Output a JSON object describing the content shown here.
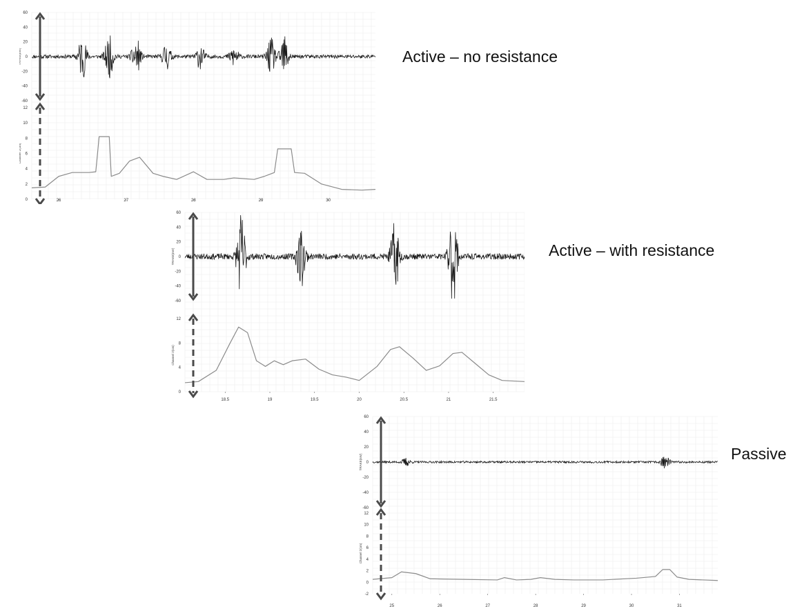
{
  "colors": {
    "emg_trace": "#1a1a1a",
    "displacement_trace": "#8a8a8a",
    "grid": "#ececec",
    "arrow": "#4a4a4a"
  },
  "panels": [
    {
      "caption": "Active – no resistance",
      "emg_ylabel": "TRAKE(mV)",
      "disp_ylabel": "Channel 2(cm)",
      "emg_yticks": [
        "60",
        "40",
        "20",
        "0",
        "-20",
        "-40",
        "-60"
      ],
      "disp_yticks": [
        "12",
        "10",
        "8",
        "6",
        "4",
        "2",
        "0"
      ],
      "xticks": [
        "26",
        "27",
        "28",
        "29",
        "30"
      ]
    },
    {
      "caption": "Active – with resistance",
      "emg_ylabel": "TRAKE(mV)",
      "disp_ylabel": "Channel 2(cm)",
      "emg_yticks": [
        "60",
        "40",
        "20",
        "0",
        "-20",
        "-40",
        "-60"
      ],
      "disp_yticks": [
        "12",
        "8",
        "4",
        "0"
      ],
      "xticks": [
        "18.5",
        "19",
        "19.5",
        "20",
        "20.5",
        "21",
        "21.5"
      ]
    },
    {
      "caption": "Passive",
      "emg_ylabel": "TRAKE(mV)",
      "disp_ylabel": "Channel 2(cm)",
      "emg_yticks": [
        "60",
        "40",
        "20",
        "0",
        "-20",
        "-40",
        "-60"
      ],
      "disp_yticks": [
        "12",
        "10",
        "8",
        "6",
        "4",
        "2",
        "0",
        "-2"
      ],
      "xticks": [
        "25",
        "26",
        "27",
        "28",
        "29",
        "30",
        "31"
      ]
    }
  ],
  "chart_data": [
    {
      "type": "line",
      "caption": "Active – no resistance",
      "subplots": [
        {
          "ylabel": "TRAKE(mV)",
          "ylim": [
            -60,
            60
          ],
          "xlim": [
            25.6,
            30.7
          ],
          "signal": "EMG (oscillatory)",
          "bursts": [
            {
              "x": 26.35,
              "amp": 30
            },
            {
              "x": 26.75,
              "amp": 28
            },
            {
              "x": 27.15,
              "amp": 25
            },
            {
              "x": 27.6,
              "amp": 18
            },
            {
              "x": 28.1,
              "amp": 16
            },
            {
              "x": 28.6,
              "amp": 14
            },
            {
              "x": 29.15,
              "amp": 24
            },
            {
              "x": 29.35,
              "amp": 28
            }
          ]
        },
        {
          "ylabel": "Channel 2(cm)",
          "ylim": [
            0,
            12
          ],
          "xlim": [
            25.6,
            30.7
          ],
          "x": [
            25.6,
            25.8,
            26.0,
            26.2,
            26.45,
            26.55,
            26.6,
            26.75,
            26.78,
            26.9,
            27.05,
            27.2,
            27.4,
            27.55,
            27.75,
            28.0,
            28.2,
            28.45,
            28.6,
            28.9,
            29.05,
            29.2,
            29.25,
            29.45,
            29.5,
            29.65,
            29.9,
            30.2,
            30.5,
            30.7
          ],
          "y": [
            1.5,
            1.6,
            3.0,
            3.5,
            3.5,
            3.6,
            8.2,
            8.2,
            3.0,
            3.4,
            5.0,
            5.5,
            3.4,
            3.0,
            2.6,
            3.6,
            2.6,
            2.6,
            2.8,
            2.6,
            3.0,
            3.5,
            6.6,
            6.6,
            3.5,
            3.4,
            2.0,
            1.3,
            1.2,
            1.3
          ]
        }
      ]
    },
    {
      "type": "line",
      "caption": "Active – with resistance",
      "subplots": [
        {
          "ylabel": "TRAKE(mV)",
          "ylim": [
            -60,
            60
          ],
          "xlim": [
            18.05,
            21.85
          ],
          "signal": "EMG (oscillatory)",
          "bursts": [
            {
              "x": 18.68,
              "amp": 60
            },
            {
              "x": 19.35,
              "amp": 42
            },
            {
              "x": 20.4,
              "amp": 48
            },
            {
              "x": 21.05,
              "amp": 62
            }
          ]
        },
        {
          "ylabel": "Channel 2(cm)",
          "ylim": [
            0,
            13
          ],
          "xlim": [
            18.05,
            21.85
          ],
          "x": [
            18.05,
            18.2,
            18.4,
            18.55,
            18.65,
            18.75,
            18.85,
            18.95,
            19.05,
            19.15,
            19.25,
            19.4,
            19.55,
            19.7,
            19.85,
            20.0,
            20.2,
            20.35,
            20.45,
            20.6,
            20.75,
            20.9,
            21.05,
            21.15,
            21.3,
            21.45,
            21.6,
            21.85
          ],
          "y": [
            1.6,
            1.8,
            3.8,
            8.5,
            11.5,
            10.5,
            5.5,
            4.5,
            5.5,
            4.8,
            5.5,
            5.8,
            4.0,
            3.0,
            2.6,
            2.0,
            4.5,
            7.5,
            8.0,
            6.0,
            3.8,
            4.6,
            6.8,
            7.0,
            5.0,
            3.0,
            2.0,
            1.8
          ]
        }
      ]
    },
    {
      "type": "line",
      "caption": "Passive",
      "subplots": [
        {
          "ylabel": "TRAKE(mV)",
          "ylim": [
            -60,
            60
          ],
          "xlim": [
            24.6,
            31.8
          ],
          "signal": "EMG (oscillatory)",
          "bursts": [
            {
              "x": 25.3,
              "amp": 5
            },
            {
              "x": 30.7,
              "amp": 9
            }
          ]
        },
        {
          "ylabel": "Channel 2(cm)",
          "ylim": [
            -2,
            12
          ],
          "xlim": [
            24.6,
            31.8
          ],
          "x": [
            24.6,
            25.0,
            25.2,
            25.5,
            25.8,
            26.5,
            27.2,
            27.35,
            27.6,
            27.9,
            28.1,
            28.4,
            28.8,
            29.4,
            30.1,
            30.5,
            30.65,
            30.8,
            30.95,
            31.2,
            31.8
          ],
          "y": [
            0.5,
            0.8,
            1.8,
            1.5,
            0.6,
            0.5,
            0.4,
            0.8,
            0.4,
            0.5,
            0.8,
            0.5,
            0.4,
            0.4,
            0.7,
            1.0,
            2.2,
            2.2,
            0.9,
            0.5,
            0.3
          ]
        }
      ]
    }
  ]
}
